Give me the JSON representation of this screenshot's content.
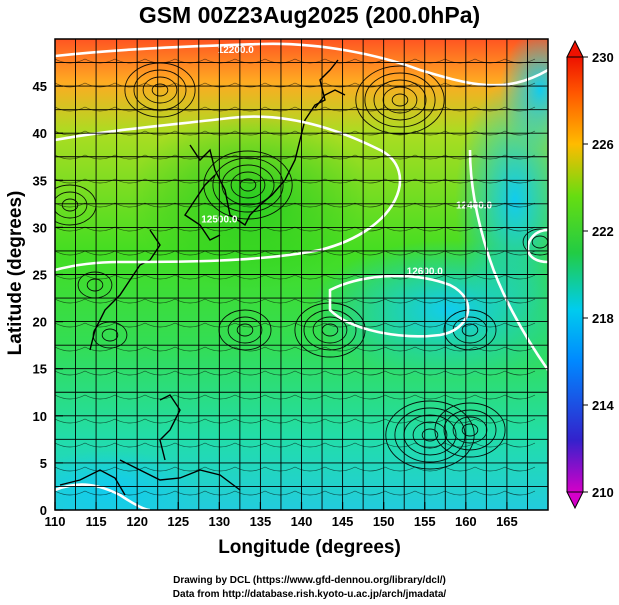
{
  "title": "GSM 00Z23Aug2025 (200.0hPa)",
  "credits": {
    "line1": "Drawing by DCL (https://www.gfd-dennou.org/library/dcl/)",
    "line2": "Data from http://database.rish.kyoto-u.ac.jp/arch/jmadata/"
  },
  "chart_data": {
    "type": "heatmap",
    "title": "GSM 00Z23Aug2025 (200.0hPa)",
    "xlabel": "Longitude (degrees)",
    "ylabel": "Latitude  (degrees)",
    "xlim": [
      110,
      170
    ],
    "ylim": [
      0,
      50
    ],
    "x_ticks": [
      "110",
      "115",
      "120",
      "125",
      "130",
      "135",
      "140",
      "145",
      "150",
      "155",
      "160",
      "165"
    ],
    "y_ticks": [
      "0",
      "5",
      "10",
      "15",
      "20",
      "25",
      "30",
      "35",
      "40",
      "45"
    ],
    "colorbar": {
      "min": 210,
      "max": 230,
      "labels": [
        "230",
        "226",
        "222",
        "218",
        "214",
        "210"
      ],
      "colors": [
        "#cc00cc",
        "#2222dd",
        "#00aaff",
        "#00d8c8",
        "#22cc22",
        "#aadd00",
        "#ffaa00",
        "#ff2200"
      ],
      "extend": "both"
    },
    "contours": [
      {
        "label": "12200.0",
        "lon": 132,
        "lat": 48.5
      },
      {
        "label": "12400.0",
        "lon": 161,
        "lat": 32
      },
      {
        "label": "12500.0",
        "lon": 130,
        "lat": 30.5
      },
      {
        "label": "12600.0",
        "lon": 155,
        "lat": 25
      }
    ]
  }
}
